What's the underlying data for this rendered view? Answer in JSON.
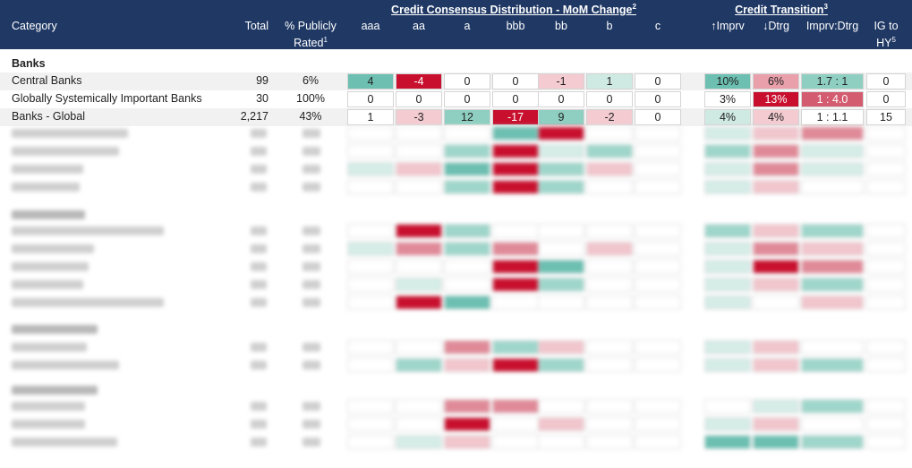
{
  "header": {
    "category": "Category",
    "total": "Total",
    "pct_rated_line1": "% Publicly",
    "pct_rated_line2": "Rated",
    "pct_rated_sup": "1",
    "ccd_title": "Credit Consensus Distribution - MoM Change",
    "ccd_sup": "2",
    "grades": [
      "aaa",
      "aa",
      "a",
      "bbb",
      "bb",
      "b",
      "c"
    ],
    "ct_title": "Credit Transition",
    "ct_sup": "3",
    "imprv": "↑Imprv",
    "dtrg": "↓Dtrg",
    "ratio": "Imprv:Dtrg",
    "ig_line1": "IG to",
    "ig_line2": "HY",
    "ig_sup": "5"
  },
  "section_banks": "Banks",
  "rows": [
    {
      "name": "Central Banks",
      "total": "99",
      "pct": "6%",
      "grades": [
        "4",
        "-4",
        "0",
        "0",
        "-1",
        "1",
        "0"
      ],
      "imprv": "10%",
      "dtrg": "6%",
      "ratio": "1.7 : 1",
      "ig": "0"
    },
    {
      "name": "Globally Systemically Important Banks",
      "total": "30",
      "pct": "100%",
      "grades": [
        "0",
        "0",
        "0",
        "0",
        "0",
        "0",
        "0"
      ],
      "imprv": "3%",
      "dtrg": "13%",
      "ratio": "1 : 4.0",
      "ig": "0"
    },
    {
      "name": "Banks - Global",
      "total": "2,217",
      "pct": "43%",
      "grades": [
        "1",
        "-3",
        "12",
        "-17",
        "9",
        "-2",
        "0"
      ],
      "imprv": "4%",
      "dtrg": "4%",
      "ratio": "1 : 1.1",
      "ig": "15"
    }
  ],
  "colors": {
    "header_bg": "#1f3864",
    "green_strong": "#6cbfb1",
    "red_strong": "#c8102e"
  }
}
